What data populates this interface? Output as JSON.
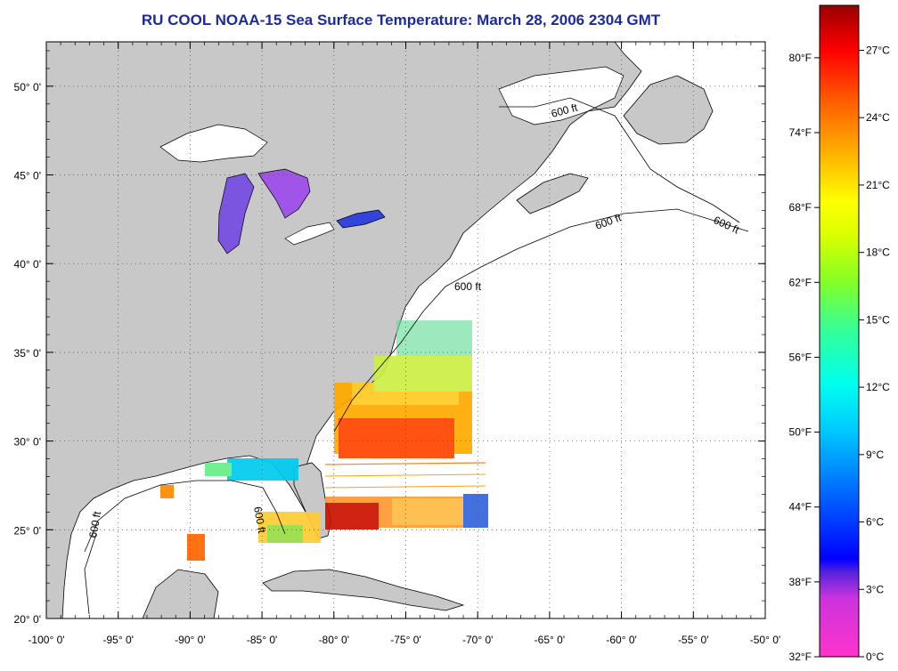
{
  "title": "RU COOL  NOAA-15  Sea Surface Temperature:  March 28, 2006 2304 GMT",
  "map": {
    "lon_labels": [
      "-100° 0'",
      "-95° 0'",
      "-90° 0'",
      "-85° 0'",
      "-80° 0'",
      "-75° 0'",
      "-70° 0'",
      "-65° 0'",
      "-60° 0'",
      "-55° 0'",
      "-50° 0'"
    ],
    "lat_labels": [
      "50° 0'",
      "45° 0'",
      "40° 0'",
      "35° 0'",
      "30° 0'",
      "25° 0'",
      "20° 0'"
    ],
    "lons": [
      -100,
      -95,
      -90,
      -85,
      -80,
      -75,
      -70,
      -65,
      -60,
      -55,
      -50
    ],
    "lats": [
      50,
      45,
      40,
      35,
      30,
      25,
      20
    ],
    "lon_range": [
      -100,
      -50
    ],
    "lat_range": [
      20,
      52.5
    ],
    "contour_label": "600 ft",
    "grid": "dotted",
    "colors": {
      "land": "#c8c8c8",
      "ocean": "#ffffff",
      "title": "#1c2a9c"
    }
  },
  "colorbar": {
    "fahrenheit_labels": [
      "80°F",
      "74°F",
      "68°F",
      "62°F",
      "56°F",
      "50°F",
      "44°F",
      "38°F",
      "32°F"
    ],
    "celsius_labels": [
      "27°C",
      "24°C",
      "21°C",
      "18°C",
      "15°C",
      "12°C",
      "9°C",
      "6°C",
      "3°C",
      "0°C"
    ],
    "fahrenheit_values": [
      80,
      74,
      68,
      62,
      56,
      50,
      44,
      38,
      32
    ],
    "celsius_values": [
      27,
      24,
      21,
      18,
      15,
      12,
      9,
      6,
      3,
      0
    ],
    "range_c": [
      0,
      29
    ],
    "gradient": [
      "#ff33cc",
      "#8833dd",
      "#0000ff",
      "#00aaff",
      "#00ffff",
      "#33ff99",
      "#aaff00",
      "#ffff00",
      "#ffaa00",
      "#ff5500",
      "#ff0000",
      "#aa0000"
    ]
  }
}
